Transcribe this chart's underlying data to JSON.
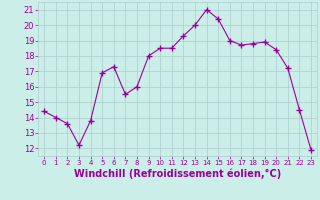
{
  "x": [
    0,
    1,
    2,
    3,
    4,
    5,
    6,
    7,
    8,
    9,
    10,
    11,
    12,
    13,
    14,
    15,
    16,
    17,
    18,
    19,
    20,
    21,
    22,
    23
  ],
  "y": [
    14.4,
    14.0,
    13.6,
    12.2,
    13.8,
    16.9,
    17.3,
    15.5,
    16.0,
    18.0,
    18.5,
    18.5,
    19.3,
    20.0,
    21.0,
    20.4,
    19.0,
    18.7,
    18.8,
    18.9,
    18.4,
    17.2,
    14.5,
    11.9
  ],
  "line_color": "#990099",
  "marker": "+",
  "marker_size": 4,
  "xlabel": "Windchill (Refroidissement éolien,°C)",
  "xlabel_fontsize": 7,
  "ylim": [
    11.5,
    21.5
  ],
  "xlim": [
    -0.5,
    23.5
  ],
  "yticks": [
    12,
    13,
    14,
    15,
    16,
    17,
    18,
    19,
    20,
    21
  ],
  "xticks": [
    0,
    1,
    2,
    3,
    4,
    5,
    6,
    7,
    8,
    9,
    10,
    11,
    12,
    13,
    14,
    15,
    16,
    17,
    18,
    19,
    20,
    21,
    22,
    23
  ],
  "bg_color": "#cceee8",
  "grid_color": "#aacccc",
  "tick_label_color": "#990099",
  "label_color": "#990099"
}
